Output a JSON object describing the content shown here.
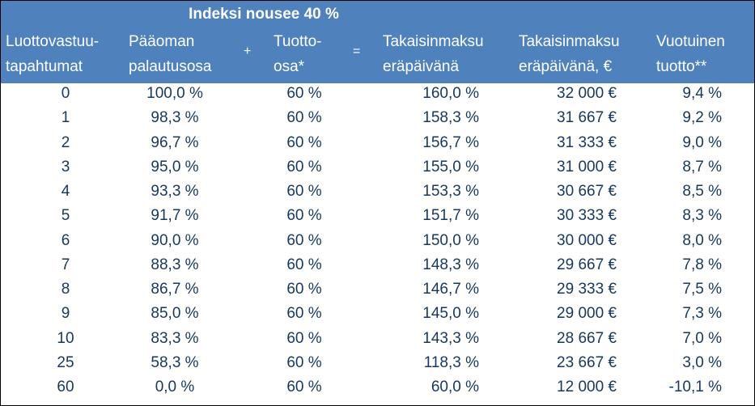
{
  "table": {
    "title": "Indeksi nousee 40 %",
    "headers": {
      "col1_line1": "Luottovastuu-",
      "col1_line2": "tapahtumat",
      "col2_line1": "Pääoman",
      "col2_line2": "palautusosa",
      "plus": "+",
      "col3_line1": "Tuotto-",
      "col3_line2": "osa*",
      "equals": "=",
      "col4_line1": "Takaisinmaksu",
      "col4_line2": "eräpäivänä",
      "col5_line1": "Takaisinmaksu",
      "col5_line2": "eräpäivänä, €",
      "col6_line1": "Vuotuinen",
      "col6_line2": "tuotto**"
    },
    "rows": [
      [
        "0",
        "100,0 %",
        "60 %",
        "160,0 %",
        "32 000 €",
        "9,4 %"
      ],
      [
        "1",
        "98,3 %",
        "60 %",
        "158,3 %",
        "31 667 €",
        "9,2 %"
      ],
      [
        "2",
        "96,7 %",
        "60 %",
        "156,7 %",
        "31 333 €",
        "9,0 %"
      ],
      [
        "3",
        "95,0 %",
        "60 %",
        "155,0 %",
        "31 000 €",
        "8,7 %"
      ],
      [
        "4",
        "93,3 %",
        "60 %",
        "153,3 %",
        "30 667 €",
        "8,5 %"
      ],
      [
        "5",
        "91,7 %",
        "60 %",
        "151,7 %",
        "30 333 €",
        "8,3 %"
      ],
      [
        "6",
        "90,0 %",
        "60 %",
        "150,0 %",
        "30 000 €",
        "8,0 %"
      ],
      [
        "7",
        "88,3 %",
        "60 %",
        "148,3 %",
        "29 667 €",
        "7,8 %"
      ],
      [
        "8",
        "86,7 %",
        "60 %",
        "146,7 %",
        "29 333 €",
        "7,5 %"
      ],
      [
        "9",
        "85,0 %",
        "60 %",
        "145,0 %",
        "29 000 €",
        "7,3 %"
      ],
      [
        "10",
        "83,3 %",
        "60 %",
        "143,3 %",
        "28 667 €",
        "7,0 %"
      ],
      [
        "25",
        "58,3 %",
        "60 %",
        "118,3 %",
        "23 667 €",
        "3,0 %"
      ],
      [
        "60",
        "0,0 %",
        "60 %",
        "60,0 %",
        "12 000 €",
        "-10,1 %"
      ]
    ]
  },
  "colors": {
    "header_bg": "#4f81bd",
    "header_text": "#ffffff",
    "body_text": "#17375e"
  }
}
